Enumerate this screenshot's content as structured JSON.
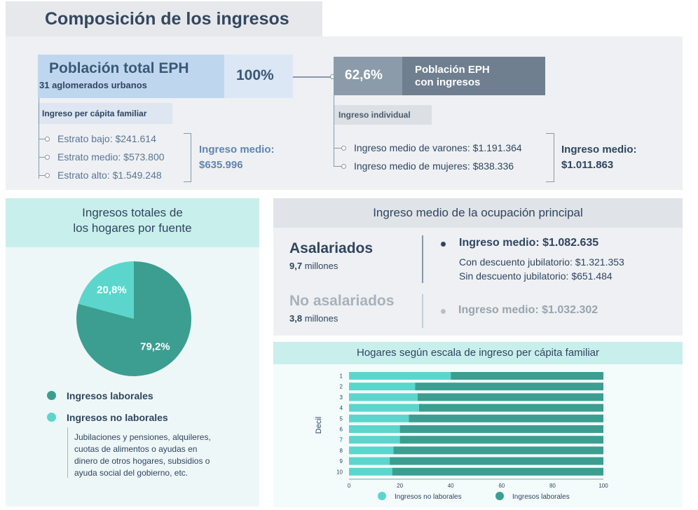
{
  "title": "Composición de los ingresos",
  "top": {
    "poblacion_title": "Población total EPH",
    "poblacion_sub": "31 aglomerados urbanos",
    "pct_total": "100%",
    "ingreso_pc_label": "Ingreso per cápita familiar",
    "estratos": [
      "Estrato bajo: $241.614",
      "Estrato medio: $573.800",
      "Estrato alto: $1.549.248"
    ],
    "ingreso_medio_label": "Ingreso medio:",
    "ingreso_medio_value": "$635.996",
    "eph_pct": "62,6%",
    "eph_label_1": "Población EPH",
    "eph_label_2": "con ingresos",
    "ingreso_individual_label": "Ingreso individual",
    "individual": [
      "Ingreso medio de varones: $1.191.364",
      "Ingreso medio de mujeres: $838.336"
    ],
    "ingreso_medio2_label": "Ingreso medio:",
    "ingreso_medio2_value": "$1.011.863"
  },
  "fuente": {
    "title_1": "Ingresos totales de",
    "title_2": "los hogares por fuente",
    "legend": [
      {
        "label": "Ingresos laborales",
        "color": "#3b9e91"
      },
      {
        "label": "Ingresos no laborales",
        "color": "#5cd6cc"
      }
    ],
    "note": [
      "Jubilaciones y pensiones, alquileres,",
      "cuotas de alimentos o ayudas en",
      "dinero de otros hogares,  subsidios o",
      "ayuda social del gobierno, etc."
    ]
  },
  "ocupacion": {
    "title": "Ingreso medio de la ocupación principal",
    "asal_title": "Asalariados",
    "asal_num": "9,7",
    "asal_unit": " millones",
    "asal_ingreso": "Ingreso medio: $1.082.635",
    "asal_con": "Con descuento jubilatorio: $1.321.353",
    "asal_sin": "Sin descuento jubilatorio: $651.484",
    "noasal_title": "No asalariados",
    "noasal_num": "3,8",
    "noasal_unit": " millones",
    "noasal_ingreso": "Ingreso medio: $1.032.302"
  },
  "escala": {
    "title": "Hogares según escala de ingreso per cápita familiar"
  },
  "chart_data": [
    {
      "type": "pie",
      "labels": [
        "Ingresos laborales",
        "Ingresos no laborales"
      ],
      "values": [
        79.2,
        20.8
      ],
      "value_labels": [
        "79,2%",
        "20,8%"
      ],
      "colors": [
        "#3b9e91",
        "#5cd6cc"
      ]
    },
    {
      "type": "bar",
      "orientation": "horizontal",
      "stacked": true,
      "ylabel": "Decil",
      "categories": [
        "1",
        "2",
        "3",
        "4",
        "5",
        "6",
        "7",
        "8",
        "9",
        "10"
      ],
      "series": [
        {
          "name": "Ingresos no laborales",
          "color": "#5cd6cc",
          "values": [
            40,
            26,
            27,
            27.5,
            23.5,
            20,
            20,
            17.5,
            16,
            17
          ]
        },
        {
          "name": "Ingresos laborales",
          "color": "#3b9e91",
          "values": [
            60,
            74,
            73,
            72.5,
            76.5,
            80,
            80,
            82.5,
            84,
            83
          ]
        }
      ],
      "xlim": [
        0,
        100
      ],
      "xticks": [
        "0",
        "20",
        "40",
        "60",
        "80",
        "100"
      ]
    }
  ]
}
